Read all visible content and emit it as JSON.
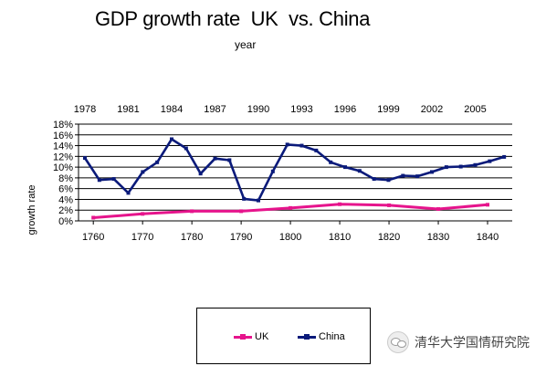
{
  "chart_data": {
    "type": "line",
    "title": "GDP growth rate  UK  vs. China",
    "subtitle": "year",
    "ylabel": "growth rate",
    "y_ticks": [
      "0%",
      "2%",
      "4%",
      "6%",
      "8%",
      "10%",
      "12%",
      "14%",
      "16%",
      "18%"
    ],
    "ylim": [
      0,
      18
    ],
    "grid": true,
    "legend_position": "bottom",
    "top_axis": {
      "ticks": [
        "1978",
        "1981",
        "1984",
        "1987",
        "1990",
        "1993",
        "1996",
        "1999",
        "2002",
        "2005"
      ],
      "range": [
        1978,
        2008
      ]
    },
    "bottom_axis": {
      "ticks": [
        "1760",
        "1770",
        "1780",
        "1790",
        "1800",
        "1810",
        "1820",
        "1830",
        "1840"
      ],
      "range": [
        1757,
        1845
      ]
    },
    "series": [
      {
        "name": "China",
        "axis": "top",
        "color": "#0a1a7a",
        "x": [
          1978,
          1979,
          1980,
          1981,
          1982,
          1983,
          1984,
          1985,
          1986,
          1987,
          1988,
          1989,
          1990,
          1991,
          1992,
          1993,
          1994,
          1995,
          1996,
          1997,
          1998,
          1999,
          2000,
          2001,
          2002,
          2003,
          2004,
          2005,
          2006,
          2007
        ],
        "values": [
          11.7,
          7.6,
          7.8,
          5.2,
          9.1,
          10.9,
          15.2,
          13.5,
          8.8,
          11.6,
          11.3,
          4.1,
          3.8,
          9.2,
          14.2,
          14.0,
          13.1,
          10.9,
          10.0,
          9.3,
          7.8,
          7.6,
          8.4,
          8.3,
          9.1,
          10.0,
          10.1,
          10.4,
          11.1,
          11.9
        ]
      },
      {
        "name": "UK",
        "axis": "bottom",
        "color": "#e6148c",
        "x": [
          1760,
          1770,
          1780,
          1790,
          1800,
          1810,
          1820,
          1830,
          1840
        ],
        "values": [
          0.6,
          1.3,
          1.8,
          1.8,
          2.4,
          3.1,
          2.9,
          2.2,
          3.0
        ]
      }
    ]
  },
  "watermark": "清华大学国情研究院"
}
